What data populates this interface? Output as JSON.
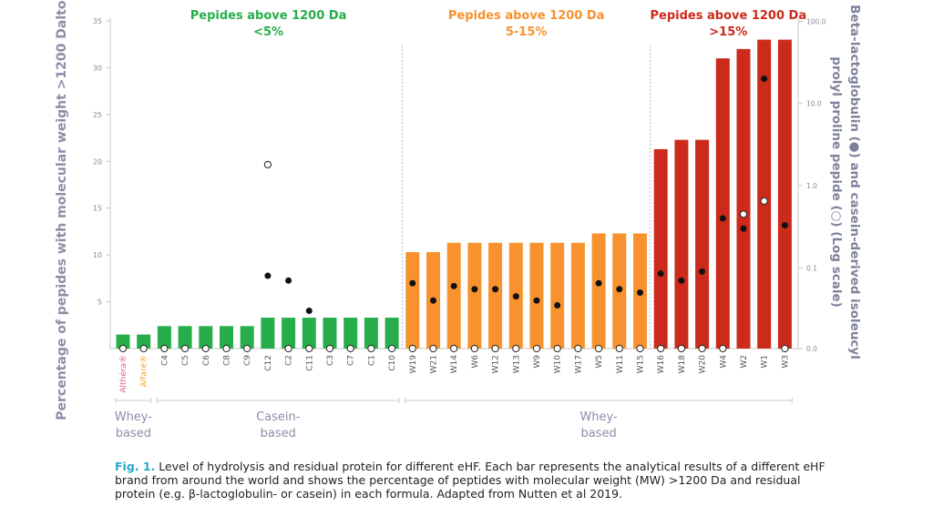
{
  "chart_data": {
    "type": "bar",
    "categories": [
      "Althéra®",
      "Alfaré®",
      "C4",
      "C5",
      "C6",
      "C8",
      "C9",
      "C12",
      "C2",
      "C11",
      "C3",
      "C7",
      "C1",
      "C10",
      "W19",
      "W21",
      "W14",
      "W6",
      "W12",
      "W13",
      "W9",
      "W10",
      "W17",
      "W5",
      "W11",
      "W15",
      "W16",
      "W18",
      "W20",
      "W4",
      "W2",
      "W1",
      "W3"
    ],
    "category_colors": [
      "#e8559a",
      "#f5a623"
    ],
    "series": [
      {
        "values": [
          1.5,
          1.5,
          2.4,
          2.4,
          2.4,
          2.4,
          2.4,
          3.3,
          3.3,
          3.3,
          3.3,
          3.3,
          3.3,
          3.3,
          10.3,
          10.3,
          11.3,
          11.3,
          11.3,
          11.3,
          11.3,
          11.3,
          11.3,
          12.3,
          12.3,
          12.3,
          21.3,
          22.3,
          22.3,
          31.0,
          32.0,
          33.0,
          33.0
        ]
      }
    ],
    "beta_lactoglobulin_filled": [
      null,
      null,
      null,
      null,
      null,
      null,
      null,
      0.08,
      0.07,
      0.03,
      null,
      null,
      null,
      null,
      0.065,
      0.04,
      0.06,
      0.055,
      0.055,
      0.045,
      0.04,
      0.035,
      null,
      0.065,
      0.055,
      0.05,
      0.085,
      0.07,
      0.09,
      0.4,
      0.3,
      20,
      0.33
    ],
    "casein_open": [
      0,
      0,
      0,
      0,
      0,
      0,
      0,
      1.8,
      0,
      0,
      0,
      0,
      0,
      0,
      0,
      0,
      0,
      0,
      0,
      0,
      0,
      0,
      0,
      0,
      0,
      0,
      0,
      0,
      0,
      0,
      0.45,
      0.65,
      0
    ],
    "ylabel": "Percentage of pepides with molecular weight  >1200 Daltons",
    "y2label_line1": "Beta-lactoglobulin (●) and casein-derived isoleucyl",
    "y2label_line2": "prolyl proline pepide (○) (Log scale)",
    "ylim": [
      0,
      35
    ],
    "yticks": [
      5,
      10,
      15,
      20,
      25,
      30,
      35
    ],
    "y2ticks": [
      "0.0",
      "0.1",
      "1.0",
      "10.0",
      "100.0"
    ],
    "colors": {
      "green": "#27ae4a",
      "orange": "#f7922e",
      "red": "#cc2a1b"
    },
    "groups": [
      {
        "title": "Pepides above 1200 Da",
        "subtitle": "<5%",
        "color": "#27ae4a"
      },
      {
        "title": "Pepides above 1200 Da",
        "subtitle": "5-15%",
        "color": "#f7922e"
      },
      {
        "title": "Pepides above 1200 Da",
        "subtitle": ">15%",
        "color": "#cc2a1b"
      }
    ],
    "bottom_groups": [
      {
        "line1": "Whey-",
        "line2": "based"
      },
      {
        "line1": "Casein-",
        "line2": "based"
      },
      {
        "line1": "Whey-",
        "line2": "based"
      }
    ]
  },
  "caption": {
    "fig": "Fig. 1.",
    "text": " Level of hydrolysis and residual protein for different eHF. Each bar represents the analytical results of a different eHF brand from around the world and shows the percentage of peptides with molecular weight (MW) >1200 Da and residual protein (e.g. β-lactoglobulin- or casein) in each formula. Adapted from Nutten et al 2019."
  }
}
